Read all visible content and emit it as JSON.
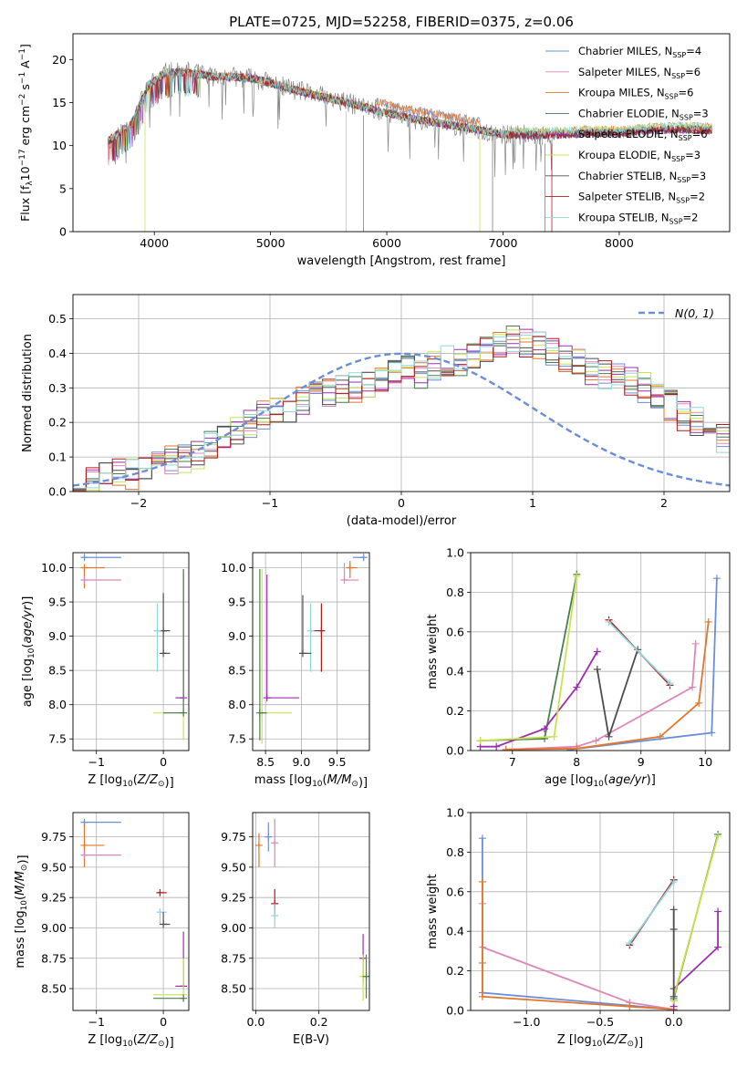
{
  "figure_title": "PLATE=0725, MJD=52258, FIBERID=0375, z=0.06",
  "colors": {
    "Chabrier MILES": "#6a8fd8",
    "Salpeter MILES": "#e085b8",
    "Kroupa MILES": "#e2762a",
    "Chabrier ELODIE": "#4a7d52",
    "Salpeter ELODIE": "#9b2fae",
    "Kroupa ELODIE": "#c9e34f",
    "Chabrier STELIB": "#4d4d4d",
    "Salpeter STELIB": "#b01c1c",
    "Kroupa STELIB": "#8fd6dc",
    "normal_curve": "#6a8fd8",
    "spectrum_gray": "#808080"
  },
  "chart_data": [
    {
      "id": "spectrum",
      "type": "line",
      "title": "PLATE=0725, MJD=52258, FIBERID=0375, z=0.06",
      "xlabel": "wavelength [Angstrom, rest frame]",
      "ylabel": "Flux [f_λ10^-17 erg cm^-2 s^-1 A^-1]",
      "xlim": [
        3300,
        8950
      ],
      "ylim": [
        0,
        23
      ],
      "xticks": [
        4000,
        5000,
        6000,
        7000,
        8000
      ],
      "yticks": [
        0,
        5,
        10,
        15,
        20
      ],
      "legend_position": "top-right",
      "legend": [
        {
          "model": "Chabrier MILES",
          "nssp": "4"
        },
        {
          "model": "Salpeter MILES",
          "nssp": "6"
        },
        {
          "model": "Kroupa MILES",
          "nssp": "6"
        },
        {
          "model": "Chabrier ELODIE",
          "nssp": "3"
        },
        {
          "model": "Salpeter ELODIE",
          "nssp": "6"
        },
        {
          "model": "Kroupa ELODIE",
          "nssp": "3"
        },
        {
          "model": "Chabrier STELIB",
          "nssp": "3"
        },
        {
          "model": "Salpeter STELIB",
          "nssp": "2"
        },
        {
          "model": "Kroupa STELIB",
          "nssp": "2"
        }
      ],
      "continuum": [
        [
          3600,
          10.5
        ],
        [
          3800,
          12.5
        ],
        [
          3950,
          17
        ],
        [
          4100,
          18.5
        ],
        [
          4300,
          18.5
        ],
        [
          4500,
          18
        ],
        [
          4700,
          18
        ],
        [
          4850,
          17.8
        ],
        [
          5000,
          17.3
        ],
        [
          5200,
          16.5
        ],
        [
          5500,
          15.5
        ],
        [
          5800,
          14.5
        ],
        [
          6000,
          13.8
        ],
        [
          6200,
          13.2
        ],
        [
          6500,
          12.5
        ],
        [
          6800,
          11.8
        ],
        [
          7000,
          11.3
        ],
        [
          7300,
          11.2
        ],
        [
          7500,
          11.3
        ],
        [
          7800,
          11.5
        ],
        [
          8000,
          11.4
        ],
        [
          8200,
          11.7
        ],
        [
          8500,
          11.9
        ],
        [
          8800,
          11.8
        ]
      ],
      "data_cut_wavelength": 7450
    },
    {
      "id": "residuals",
      "type": "histogram",
      "xlabel": "(data-model)/error",
      "ylabel": "Normed distribution",
      "xlim": [
        -2.5,
        2.5
      ],
      "ylim": [
        0,
        0.57
      ],
      "xticks": [
        -2,
        -1,
        0,
        1,
        2
      ],
      "yticks": [
        0.0,
        0.1,
        0.2,
        0.3,
        0.4,
        0.5
      ],
      "legend_label": "N(0,1)",
      "legend_position": "top-right",
      "bin_width": 0.1,
      "bin_start": -2.5,
      "envelope_mean": [
        0.02,
        0.03,
        0.04,
        0.05,
        0.05,
        0.07,
        0.08,
        0.09,
        0.1,
        0.11,
        0.13,
        0.15,
        0.17,
        0.2,
        0.22,
        0.24,
        0.23,
        0.26,
        0.28,
        0.29,
        0.3,
        0.3,
        0.31,
        0.33,
        0.34,
        0.35,
        0.34,
        0.36,
        0.38,
        0.38,
        0.39,
        0.41,
        0.42,
        0.44,
        0.43,
        0.42,
        0.4,
        0.39,
        0.37,
        0.35,
        0.34,
        0.33,
        0.32,
        0.3,
        0.28,
        0.25,
        0.22,
        0.2,
        0.18,
        0.15,
        0.13,
        0.1,
        0.09,
        0.08,
        0.07,
        0.06,
        0.05,
        0.05,
        0.04,
        0.04,
        0.05
      ]
    },
    {
      "id": "age_vs_Z",
      "type": "errorbar",
      "xlabel": "Z [log10(Z/Z⊙)]",
      "ylabel": "age  [log10(age/yr)]",
      "xlim": [
        -1.35,
        0.38
      ],
      "ylim": [
        7.33,
        10.22
      ],
      "xticks": [
        -1,
        0
      ],
      "yticks": [
        7.5,
        8.0,
        8.5,
        9.0,
        9.5,
        10.0
      ],
      "points": [
        {
          "model": "Chabrier MILES",
          "x": -1.18,
          "y": 10.15,
          "xerr": [
            0,
            0.55
          ],
          "yerr": [
            0,
            0
          ]
        },
        {
          "model": "Kroupa MILES",
          "x": -1.18,
          "y": 10.0,
          "xerr": [
            0,
            0.3
          ],
          "yerr": [
            0.3,
            0
          ]
        },
        {
          "model": "Salpeter MILES",
          "x": -1.18,
          "y": 9.82,
          "xerr": [
            0,
            0.55
          ],
          "yerr": [
            0,
            0
          ]
        },
        {
          "model": "Chabrier STELIB",
          "x": 0.0,
          "y": 9.08,
          "xerr": [
            0.1,
            0.1
          ],
          "yerr": [
            0.33,
            0.55
          ]
        },
        {
          "model": "Kroupa STELIB",
          "x": -0.09,
          "y": 9.08,
          "xerr": [
            0.0,
            0.0
          ],
          "yerr": [
            0.6,
            0.4
          ]
        },
        {
          "model": "Chabrier STELIB",
          "x": 0.0,
          "y": 8.75,
          "xerr": [
            0.0,
            0.1
          ],
          "yerr": [
            0,
            0
          ]
        },
        {
          "model": "Salpeter ELODIE",
          "x": 0.3,
          "y": 8.1,
          "xerr": [
            0.12,
            0
          ],
          "yerr": [
            0,
            1.8
          ]
        },
        {
          "model": "Kroupa ELODIE",
          "x": 0.3,
          "y": 7.88,
          "xerr": [
            0.45,
            0
          ],
          "yerr": [
            0.4,
            2.1
          ]
        },
        {
          "model": "Chabrier ELODIE",
          "x": 0.3,
          "y": 7.88,
          "xerr": [
            0.3,
            0
          ],
          "yerr": [
            0,
            2.1
          ]
        }
      ]
    },
    {
      "id": "age_vs_mass",
      "type": "errorbar",
      "xlabel": "mass [log10(M/M⊙)]",
      "ylabel": "",
      "xlim": [
        8.32,
        9.95
      ],
      "ylim": [
        7.33,
        10.22
      ],
      "xticks": [
        8.5,
        9.0,
        9.5
      ],
      "yticks": [
        7.5,
        8.0,
        8.5,
        9.0,
        9.5,
        10.0
      ],
      "points": [
        {
          "model": "Chabrier MILES",
          "x": 9.87,
          "y": 10.15,
          "xerr": [
            0.15,
            0
          ],
          "yerr": [
            0,
            0
          ]
        },
        {
          "model": "Kroupa MILES",
          "x": 9.68,
          "y": 10.0,
          "xerr": [
            0.05,
            0.1
          ],
          "yerr": [
            0.15,
            0.1
          ]
        },
        {
          "model": "Salpeter MILES",
          "x": 9.6,
          "y": 9.82,
          "xerr": [
            0,
            0.2
          ],
          "yerr": [
            0,
            0.25
          ]
        },
        {
          "model": "Salpeter STELIB",
          "x": 9.28,
          "y": 9.08,
          "xerr": [
            0.15,
            0.02
          ],
          "yerr": [
            0.6,
            0.4
          ]
        },
        {
          "model": "Kroupa STELIB",
          "x": 9.13,
          "y": 9.08,
          "xerr": [
            0.0,
            0.0
          ],
          "yerr": [
            0.6,
            0.4
          ]
        },
        {
          "model": "Chabrier STELIB",
          "x": 9.02,
          "y": 8.75,
          "xerr": [
            0,
            0.12
          ],
          "yerr": [
            0,
            0.85
          ]
        },
        {
          "model": "Salpeter ELODIE",
          "x": 8.52,
          "y": 8.1,
          "xerr": [
            0,
            0.45
          ],
          "yerr": [
            0,
            1.8
          ]
        },
        {
          "model": "Kroupa ELODIE",
          "x": 8.45,
          "y": 7.88,
          "xerr": [
            0,
            0.42
          ],
          "yerr": [
            0.45,
            2.1
          ]
        },
        {
          "model": "Chabrier ELODIE",
          "x": 8.42,
          "y": 7.88,
          "xerr": [
            0,
            0.1
          ],
          "yerr": [
            0.4,
            2.1
          ]
        }
      ]
    },
    {
      "id": "weight_vs_age",
      "type": "line",
      "xlabel": "age  [log10(age/yr)]",
      "ylabel": "mass weight",
      "xlim": [
        6.35,
        10.38
      ],
      "ylim": [
        0,
        1
      ],
      "xticks": [
        7,
        8,
        9,
        10
      ],
      "yticks": [
        0.0,
        0.2,
        0.4,
        0.6,
        0.8,
        1.0
      ],
      "series": [
        {
          "model": "Chabrier MILES",
          "x": [
            7.9,
            10.1,
            10.18
          ],
          "y": [
            0.005,
            0.09,
            0.87
          ]
        },
        {
          "model": "Salpeter MILES",
          "x": [
            6.9,
            8.0,
            8.3,
            9.8,
            9.85
          ],
          "y": [
            0.005,
            0.02,
            0.05,
            0.32,
            0.54
          ]
        },
        {
          "model": "Kroupa MILES",
          "x": [
            6.9,
            8.0,
            9.3,
            9.9,
            10.05
          ],
          "y": [
            0.005,
            0.01,
            0.07,
            0.24,
            0.65
          ]
        },
        {
          "model": "Chabrier ELODIE",
          "x": [
            6.5,
            7.5,
            8.0
          ],
          "y": [
            0.05,
            0.06,
            0.89
          ]
        },
        {
          "model": "Salpeter ELODIE",
          "x": [
            6.5,
            6.75,
            7.5,
            8.0,
            8.32
          ],
          "y": [
            0.02,
            0.02,
            0.11,
            0.32,
            0.5
          ]
        },
        {
          "model": "Kroupa ELODIE",
          "x": [
            6.5,
            7.65,
            8.0
          ],
          "y": [
            0.05,
            0.07,
            0.88
          ]
        },
        {
          "model": "Chabrier STELIB",
          "x": [
            8.32,
            8.5,
            8.95
          ],
          "y": [
            0.41,
            0.07,
            0.51
          ]
        },
        {
          "model": "Salpeter STELIB",
          "x": [
            8.5,
            9.45
          ],
          "y": [
            0.66,
            0.33
          ]
        },
        {
          "model": "Kroupa STELIB",
          "x": [
            8.5,
            9.45
          ],
          "y": [
            0.65,
            0.34
          ]
        }
      ]
    },
    {
      "id": "mass_vs_Z",
      "type": "errorbar",
      "xlabel": "Z [log10(Z/Z⊙)]",
      "ylabel": "mass [log10(M/M⊙)]",
      "xlim": [
        -1.35,
        0.38
      ],
      "ylim": [
        8.32,
        9.95
      ],
      "xticks": [
        -1,
        0
      ],
      "yticks": [
        8.5,
        8.75,
        9.0,
        9.25,
        9.5,
        9.75
      ],
      "points": [
        {
          "model": "Chabrier MILES",
          "x": -1.18,
          "y": 9.87,
          "xerr": [
            0,
            0.55
          ],
          "yerr": [
            0,
            0
          ]
        },
        {
          "model": "Kroupa MILES",
          "x": -1.18,
          "y": 9.68,
          "xerr": [
            0,
            0.3
          ],
          "yerr": [
            0.18,
            0.18
          ]
        },
        {
          "model": "Salpeter MILES",
          "x": -1.18,
          "y": 9.6,
          "xerr": [
            0,
            0.55
          ],
          "yerr": [
            0,
            0
          ]
        },
        {
          "model": "Salpeter STELIB",
          "x": -0.05,
          "y": 9.29,
          "xerr": [
            0.03,
            0.1
          ],
          "yerr": [
            0.02,
            0.0
          ]
        },
        {
          "model": "Kroupa STELIB",
          "x": -0.05,
          "y": 9.13,
          "xerr": [
            0.03,
            0.1
          ],
          "yerr": [
            0.1,
            0.02
          ]
        },
        {
          "model": "Chabrier STELIB",
          "x": 0.0,
          "y": 9.03,
          "xerr": [
            0,
            0.1
          ],
          "yerr": [
            0,
            0.1
          ]
        },
        {
          "model": "Salpeter ELODIE",
          "x": 0.3,
          "y": 8.52,
          "xerr": [
            0.12,
            0
          ],
          "yerr": [
            0,
            0.45
          ]
        },
        {
          "model": "Kroupa ELODIE",
          "x": 0.3,
          "y": 8.45,
          "xerr": [
            0.45,
            0
          ],
          "yerr": [
            0,
            0.3
          ]
        },
        {
          "model": "Chabrier ELODIE",
          "x": 0.3,
          "y": 8.42,
          "xerr": [
            0.45,
            0
          ],
          "yerr": [
            0,
            0
          ]
        }
      ]
    },
    {
      "id": "mass_vs_EBV",
      "type": "errorbar",
      "xlabel": "E(B-V)",
      "ylabel": "",
      "xlim": [
        -0.01,
        0.36
      ],
      "ylim": [
        8.32,
        9.95
      ],
      "xticks": [
        0.0,
        0.2
      ],
      "yticks": [
        8.5,
        8.75,
        9.0,
        9.25,
        9.5,
        9.75
      ],
      "points": [
        {
          "model": "Kroupa MILES",
          "x": 0.01,
          "y": 9.68,
          "xerr": [
            0,
            0
          ],
          "yerr": [
            0.18,
            0.1
          ]
        },
        {
          "model": "Chabrier MILES",
          "x": 0.04,
          "y": 9.75,
          "xerr": [
            0,
            0
          ],
          "yerr": [
            0.12,
            0.12
          ]
        },
        {
          "model": "Salpeter MILES",
          "x": 0.06,
          "y": 9.7,
          "xerr": [
            0,
            0
          ],
          "yerr": [
            0.2,
            0.2
          ]
        },
        {
          "model": "Salpeter STELIB",
          "x": 0.06,
          "y": 9.2,
          "xerr": [
            0,
            0
          ],
          "yerr": [
            0.1,
            0.12
          ]
        },
        {
          "model": "Kroupa STELIB",
          "x": 0.06,
          "y": 9.1,
          "xerr": [
            0,
            0
          ],
          "yerr": [
            0.1,
            0.1
          ]
        },
        {
          "model": "Salpeter ELODIE",
          "x": 0.34,
          "y": 8.75,
          "xerr": [
            0,
            0
          ],
          "yerr": [
            0.2,
            0.2
          ]
        },
        {
          "model": "Kroupa ELODIE",
          "x": 0.34,
          "y": 8.6,
          "xerr": [
            0,
            0
          ],
          "yerr": [
            0.2,
            0.18
          ]
        },
        {
          "model": "Chabrier ELODIE",
          "x": 0.35,
          "y": 8.6,
          "xerr": [
            0,
            0
          ],
          "yerr": [
            0.18,
            0.18
          ]
        }
      ]
    },
    {
      "id": "weight_vs_Z",
      "type": "line",
      "xlabel": "Z [log10(Z/Z⊙)]",
      "ylabel": "mass weight",
      "xlim": [
        -1.38,
        0.38
      ],
      "ylim": [
        0,
        1
      ],
      "xticks": [
        -1.0,
        -0.5,
        0.0
      ],
      "yticks": [
        0.0,
        0.2,
        0.4,
        0.6,
        0.8,
        1.0
      ],
      "series": [
        {
          "model": "Chabrier MILES",
          "x": [
            -1.3,
            -1.3,
            0.0
          ],
          "y": [
            0.87,
            0.09,
            0.005
          ]
        },
        {
          "model": "Salpeter MILES",
          "x": [
            -1.3,
            -1.3,
            -0.3,
            0.0
          ],
          "y": [
            0.54,
            0.32,
            0.04,
            0.005
          ]
        },
        {
          "model": "Kroupa MILES",
          "x": [
            -1.3,
            -1.3,
            -1.3,
            -0.3,
            0.0
          ],
          "y": [
            0.65,
            0.24,
            0.07,
            0.02,
            0.005
          ]
        },
        {
          "model": "Chabrier ELODIE",
          "x": [
            0.0,
            0.0,
            0.3
          ],
          "y": [
            0.05,
            0.06,
            0.89
          ]
        },
        {
          "model": "Salpeter ELODIE",
          "x": [
            0.0,
            0.0,
            0.3,
            0.3
          ],
          "y": [
            0.02,
            0.11,
            0.32,
            0.5
          ]
        },
        {
          "model": "Kroupa ELODIE",
          "x": [
            0.0,
            0.0,
            0.3
          ],
          "y": [
            0.05,
            0.07,
            0.88
          ]
        },
        {
          "model": "Chabrier STELIB",
          "x": [
            0.0,
            0.0,
            0.0
          ],
          "y": [
            0.07,
            0.41,
            0.51
          ]
        },
        {
          "model": "Salpeter STELIB",
          "x": [
            -0.3,
            0.0
          ],
          "y": [
            0.33,
            0.66
          ]
        },
        {
          "model": "Kroupa STELIB",
          "x": [
            -0.3,
            0.0
          ],
          "y": [
            0.34,
            0.65
          ]
        }
      ]
    }
  ]
}
